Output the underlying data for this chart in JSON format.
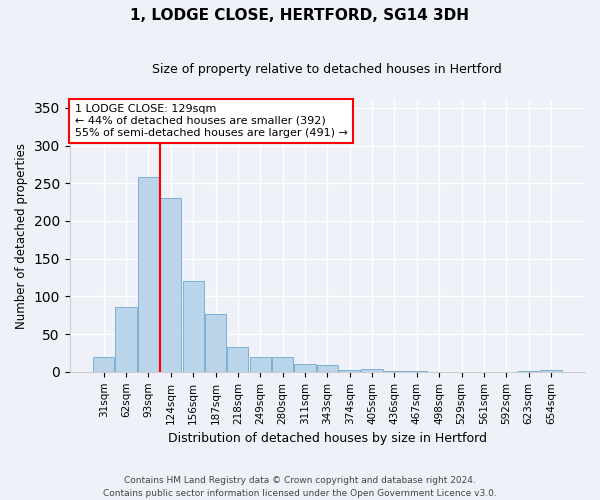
{
  "title": "1, LODGE CLOSE, HERTFORD, SG14 3DH",
  "subtitle": "Size of property relative to detached houses in Hertford",
  "xlabel": "Distribution of detached houses by size in Hertford",
  "ylabel": "Number of detached properties",
  "bar_labels": [
    "31sqm",
    "62sqm",
    "93sqm",
    "124sqm",
    "156sqm",
    "187sqm",
    "218sqm",
    "249sqm",
    "280sqm",
    "311sqm",
    "343sqm",
    "374sqm",
    "405sqm",
    "436sqm",
    "467sqm",
    "498sqm",
    "529sqm",
    "561sqm",
    "592sqm",
    "623sqm",
    "654sqm"
  ],
  "bar_values": [
    19,
    86,
    258,
    230,
    121,
    76,
    33,
    20,
    20,
    11,
    9,
    2,
    4,
    1,
    1,
    0,
    0,
    0,
    0,
    1,
    2
  ],
  "bar_color": "#bad4ea",
  "bar_edge_color": "#7bafd4",
  "vline_color": "red",
  "vline_index": 3,
  "annotation_line1": "1 LODGE CLOSE: 129sqm",
  "annotation_line2": "← 44% of detached houses are smaller (392)",
  "annotation_line3": "55% of semi-detached houses are larger (491) →",
  "annotation_box_color": "white",
  "annotation_box_edge": "red",
  "ylim": [
    0,
    360
  ],
  "yticks": [
    0,
    50,
    100,
    150,
    200,
    250,
    300,
    350
  ],
  "footer": "Contains HM Land Registry data © Crown copyright and database right 2024.\nContains public sector information licensed under the Open Government Licence v3.0.",
  "bg_color": "#eef2f8",
  "plot_bg_color": "#eef2f8",
  "grid_color": "#ffffff",
  "title_fontsize": 11,
  "subtitle_fontsize": 9
}
